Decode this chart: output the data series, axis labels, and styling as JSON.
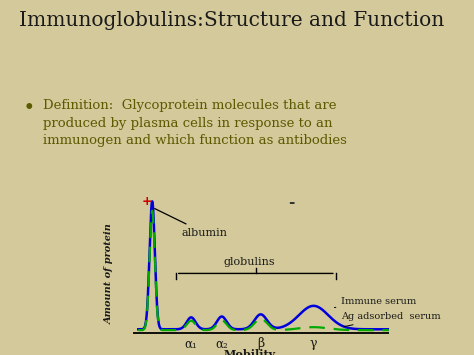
{
  "title": "Immunoglobulins:Structure and Function",
  "bullet_text": "Definition:  Glycoprotein molecules that are\nproduced by plasma cells in response to an\nimmunogen and which function as antibodies",
  "bg_color": "#d4c99a",
  "title_color": "#1a1a1a",
  "text_color": "#1a1a1a",
  "olive_color": "#5a5a00",
  "blue_line_color": "#0000dd",
  "green_line_color": "#00aa00",
  "plus_color": "#cc0000",
  "minus_color": "#333333",
  "chart_bg": "#d4c99a",
  "xlabel": "Mobility",
  "ylabel": "Amount of protein",
  "albumin_label": "albumin",
  "globulins_label": "globulins",
  "legend1": "Immune serum",
  "legend2": "Ag adsorbed  serum",
  "alpha1_label": "α₁",
  "alpha2_label": "α₂",
  "beta_label": "β",
  "gamma_label": "γ"
}
